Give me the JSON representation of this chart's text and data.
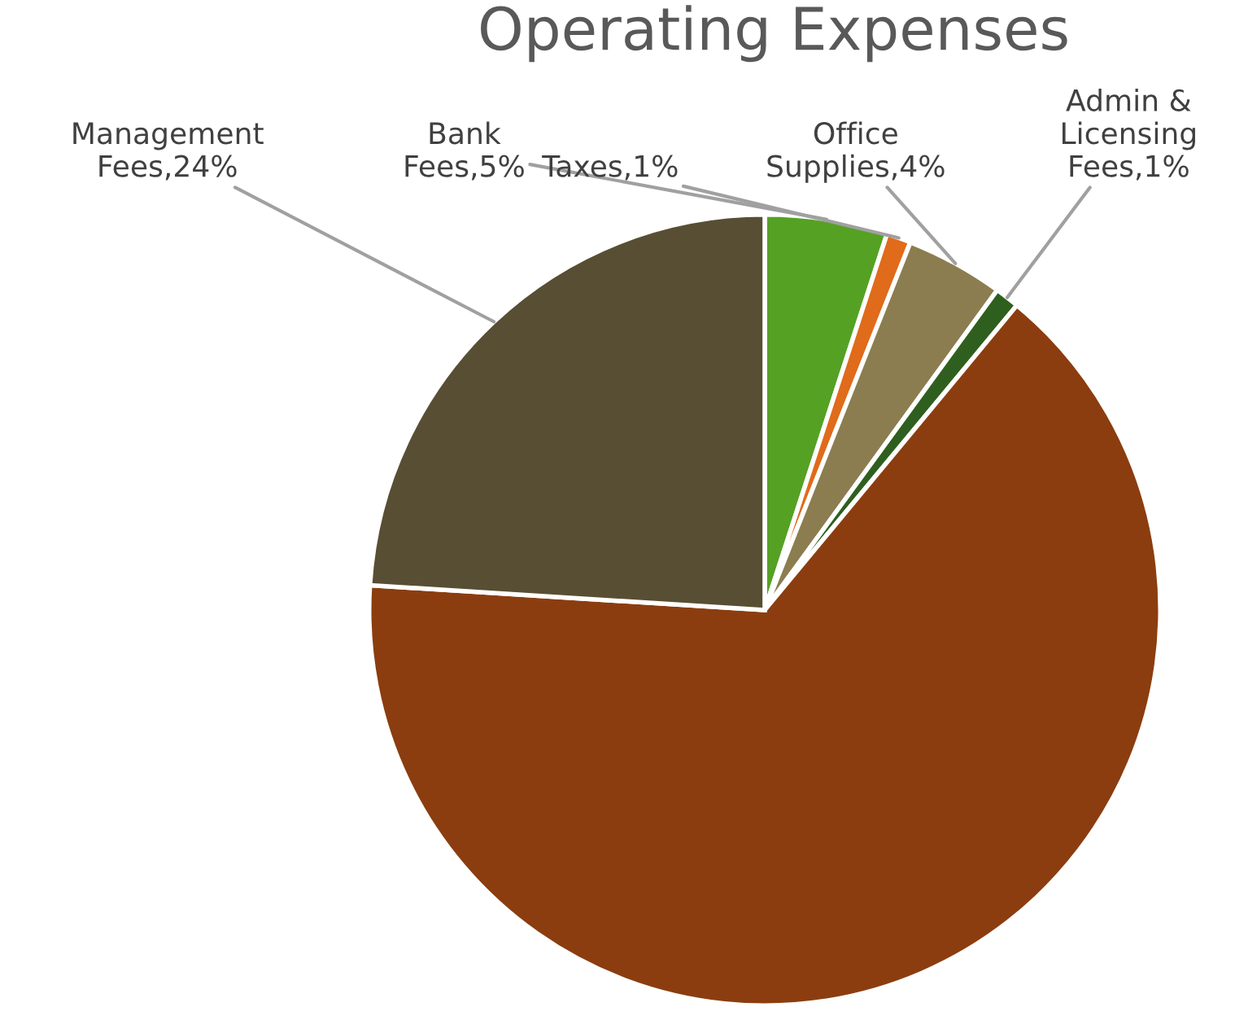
{
  "chart_data": {
    "type": "pie",
    "title": "Operating Expenses",
    "categories": [
      "Bank Fees",
      "Taxes",
      "Office Supplies",
      "Admin & Licensing Fees",
      null,
      "Management Fees"
    ],
    "values": [
      5,
      1,
      4,
      1,
      65,
      24
    ],
    "value_labels": [
      "5%",
      "1%",
      "4%",
      "1%",
      null,
      "24%"
    ],
    "colors": [
      "#55a124",
      "#e06b1a",
      "#8b7d4f",
      "#2f5f1e",
      "#8b3d0f",
      "#584e33"
    ]
  }
}
